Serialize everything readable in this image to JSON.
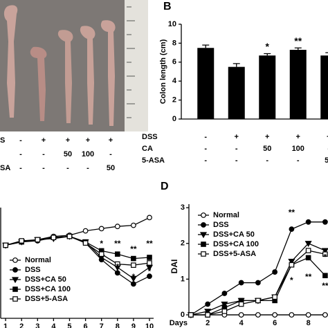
{
  "photo_panel": {
    "treatment_rows": [
      {
        "name": "S",
        "values": [
          "-",
          "+",
          "+",
          "+",
          "+"
        ]
      },
      {
        "values": [
          "-",
          "-",
          "50",
          "100",
          "-"
        ]
      },
      {
        "name": "SA",
        "values": [
          "-",
          "-",
          "-",
          "-",
          "50"
        ]
      }
    ]
  },
  "chart_data": [
    {
      "type": "bar",
      "panel_label": "B",
      "y_label": "Colon length (cm)",
      "categories": [
        null,
        null,
        null,
        null,
        null
      ],
      "values": [
        7.5,
        5.5,
        6.7,
        7.3,
        6.7
      ],
      "errors": [
        0.3,
        0.35,
        0.2,
        0.2,
        0.3
      ],
      "value_labels": [
        null,
        null,
        "*",
        "**",
        null
      ],
      "color": "#000000",
      "ylim": [
        0,
        10
      ],
      "yticks": [
        0,
        2,
        4,
        6,
        8,
        10
      ],
      "treatment_rows": [
        {
          "name": "DSS",
          "values": [
            "-",
            "+",
            "+",
            "+",
            "+"
          ]
        },
        {
          "name": "CA",
          "values": [
            "-",
            "-",
            "50",
            "100",
            "-"
          ]
        },
        {
          "name": "5-ASA",
          "values": [
            "-",
            "-",
            "-",
            "-",
            "50"
          ]
        }
      ]
    },
    {
      "type": "line",
      "x": [
        1,
        2,
        3,
        4,
        5,
        6,
        7,
        8,
        9,
        10
      ],
      "xlim": [
        0.65,
        10.26
      ],
      "xticks": [
        1,
        2,
        3,
        4,
        5,
        6,
        7,
        8,
        9,
        10
      ],
      "ylim": [
        0,
        100
      ],
      "series": [
        {
          "name": "Normal",
          "marker": "circle-open",
          "color": "#000000",
          "values": [
            66,
            69,
            71,
            74,
            75,
            79,
            81,
            83,
            84,
            91
          ]
        },
        {
          "name": "DSS",
          "marker": "circle",
          "color": "#000000",
          "values": [
            66,
            69,
            70,
            73,
            74,
            68,
            53,
            41,
            31,
            38
          ]
        },
        {
          "name": "DSS+CA 50",
          "marker": "triangle-down",
          "color": "#000000",
          "values": [
            66,
            69,
            71,
            72,
            74,
            69,
            55,
            46,
            36,
            46
          ]
        },
        {
          "name": "DSS+CA 100",
          "marker": "square",
          "color": "#000000",
          "values": [
            66,
            69,
            71,
            73,
            74,
            69,
            61,
            58,
            54,
            55
          ]
        },
        {
          "name": "DSS+5-ASA",
          "marker": "square-open",
          "color": "#000000",
          "values": [
            66,
            70,
            71,
            73,
            74,
            68,
            58,
            49,
            48,
            50
          ]
        }
      ],
      "annotations": [
        {
          "text": "*",
          "x": 7,
          "y": 67
        },
        {
          "text": "**",
          "x": 8,
          "y": 67
        },
        {
          "text": "**",
          "x": 9,
          "y": 62
        },
        {
          "text": "**",
          "x": 10,
          "y": 67
        },
        {
          "text": "*",
          "x": 8,
          "y": 46
        },
        {
          "text": "*",
          "x": 9,
          "y": 37
        },
        {
          "text": "*",
          "x": 10,
          "y": 42
        }
      ]
    },
    {
      "type": "line",
      "panel_label": "D",
      "x_label": "Days",
      "y_label": "DAI",
      "x": [
        1,
        2,
        3,
        4,
        5,
        6,
        7,
        8,
        9
      ],
      "xlim": [
        0.88,
        9.17
      ],
      "xticks": [
        2,
        4,
        6,
        8
      ],
      "ylim": [
        0,
        3.1
      ],
      "yticks": [
        0,
        1,
        2,
        3
      ],
      "series": [
        {
          "name": "Normal",
          "marker": "circle-open",
          "color": "#000000",
          "values": [
            0,
            0,
            0,
            0,
            0,
            0,
            0,
            0,
            0
          ]
        },
        {
          "name": "DSS",
          "marker": "circle",
          "color": "#000000",
          "values": [
            0,
            0.3,
            0.6,
            0.9,
            0.9,
            1.2,
            2.4,
            2.6,
            2.6
          ]
        },
        {
          "name": "DSS+CA 50",
          "marker": "triangle-down",
          "color": "#000000",
          "values": [
            0,
            0.1,
            0.3,
            0.4,
            0.4,
            0.5,
            1.5,
            2.0,
            1.8
          ]
        },
        {
          "name": "DSS+CA 100",
          "marker": "square",
          "color": "#000000",
          "values": [
            0,
            0,
            0.2,
            0.4,
            0.4,
            0.4,
            1.4,
            1.6,
            1.1
          ]
        },
        {
          "name": "DSS+5-ASA",
          "marker": "square-open",
          "color": "#000000",
          "values": [
            0,
            0,
            0.1,
            0.3,
            0.4,
            0.5,
            1.4,
            1.8,
            1.7
          ]
        }
      ],
      "annotations": [
        {
          "text": "**",
          "x": 7,
          "y": 2.85
        },
        {
          "text": "*",
          "x": 7,
          "y": 0.95
        },
        {
          "text": "**",
          "x": 8,
          "y": 1.05
        },
        {
          "text": "*",
          "x": 9,
          "y": 1.6
        },
        {
          "text": "**",
          "x": 9,
          "y": 0.8
        }
      ]
    }
  ]
}
